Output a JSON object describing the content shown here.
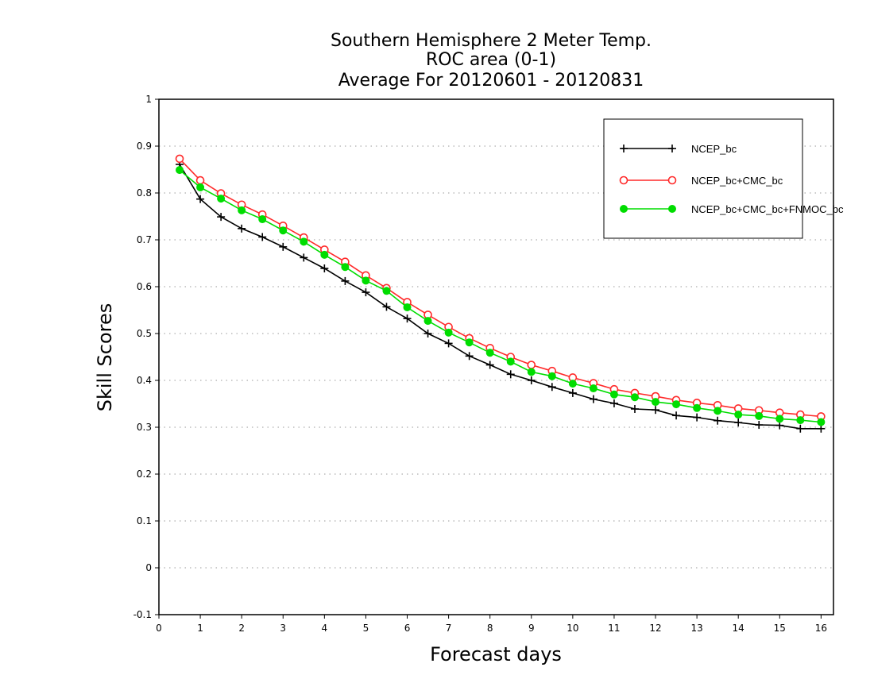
{
  "chart_data": {
    "type": "line",
    "title_lines": [
      "Southern Hemisphere 2 Meter Temp.",
      "ROC area (0-1)",
      "Average For 20120601 - 20120831"
    ],
    "xlabel": "Forecast days",
    "ylabel": "Skill Scores",
    "xlim": [
      0,
      16.3
    ],
    "ylim": [
      -0.1,
      1
    ],
    "x_ticks": [
      0,
      1,
      2,
      3,
      4,
      5,
      6,
      7,
      8,
      9,
      10,
      11,
      12,
      13,
      14,
      15,
      16
    ],
    "y_ticks": [
      -0.1,
      0,
      0.1,
      0.2,
      0.3,
      0.4,
      0.5,
      0.6,
      0.7,
      0.8,
      0.9,
      1
    ],
    "y_tick_labels": [
      "-0.1",
      "0",
      "0.1",
      "0.2",
      "0.3",
      "0.4",
      "0.5",
      "0.6",
      "0.7",
      "0.8",
      "0.9",
      "1"
    ],
    "grid": "horizontal-dotted",
    "legend_position": "top-right",
    "x": [
      0.5,
      1,
      1.5,
      2,
      2.5,
      3,
      3.5,
      4,
      4.5,
      5,
      5.5,
      6,
      6.5,
      7,
      7.5,
      8,
      8.5,
      9,
      9.5,
      10,
      10.5,
      11,
      11.5,
      12,
      12.5,
      13,
      13.5,
      14,
      14.5,
      15,
      15.5,
      16
    ],
    "series": [
      {
        "name": "NCEP_bc",
        "color": "#000000",
        "marker": "plus",
        "values": [
          0.861,
          0.787,
          0.749,
          0.724,
          0.706,
          0.685,
          0.662,
          0.639,
          0.612,
          0.588,
          0.557,
          0.532,
          0.5,
          0.479,
          0.452,
          0.433,
          0.413,
          0.4,
          0.386,
          0.373,
          0.36,
          0.351,
          0.339,
          0.337,
          0.325,
          0.321,
          0.314,
          0.31,
          0.305,
          0.304,
          0.297,
          0.297
        ]
      },
      {
        "name": "NCEP_bc+CMC_bc",
        "color": "#ff2a2a",
        "marker": "open-circle",
        "values": [
          0.873,
          0.827,
          0.799,
          0.775,
          0.754,
          0.73,
          0.705,
          0.679,
          0.653,
          0.624,
          0.597,
          0.567,
          0.54,
          0.514,
          0.49,
          0.469,
          0.45,
          0.433,
          0.42,
          0.406,
          0.394,
          0.381,
          0.373,
          0.366,
          0.358,
          0.352,
          0.347,
          0.34,
          0.336,
          0.331,
          0.327,
          0.323
        ]
      },
      {
        "name": "NCEP_bc+CMC_bc+FNMOC_bc",
        "color": "#00dd00",
        "marker": "filled-circle",
        "values": [
          0.849,
          0.812,
          0.788,
          0.763,
          0.744,
          0.72,
          0.696,
          0.668,
          0.642,
          0.613,
          0.591,
          0.556,
          0.527,
          0.502,
          0.481,
          0.459,
          0.44,
          0.418,
          0.409,
          0.393,
          0.383,
          0.37,
          0.364,
          0.354,
          0.349,
          0.341,
          0.335,
          0.327,
          0.324,
          0.318,
          0.315,
          0.311
        ]
      }
    ]
  }
}
